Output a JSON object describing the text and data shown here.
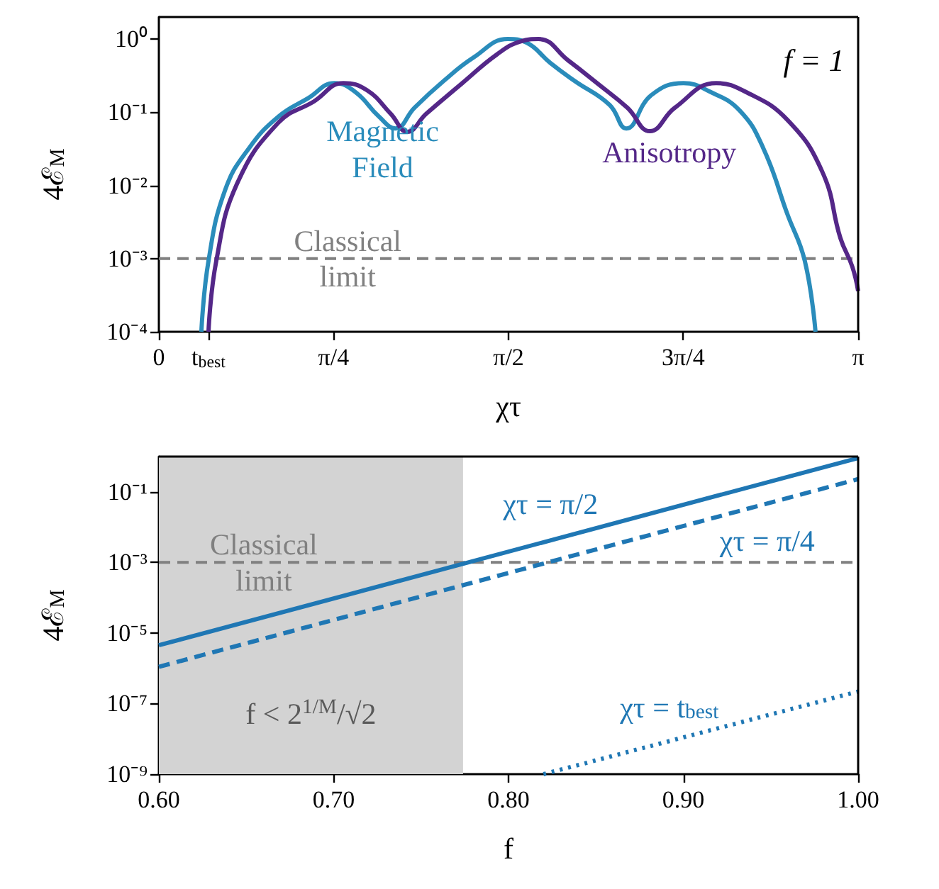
{
  "chart_data": [
    {
      "type": "line",
      "xlabel": "χτ",
      "ylabel": "4ℰ$_{M}$",
      "log": "y",
      "grid": false,
      "legend": false,
      "xlim": [
        0,
        3.1416
      ],
      "xticks": [
        0,
        {
          "value": 0.223,
          "label": "t$_{best}$"
        },
        {
          "value": 0.785,
          "label": "π/4"
        },
        {
          "value": 1.571,
          "label": "π/2"
        },
        {
          "value": 2.356,
          "label": "3π/4"
        },
        {
          "value": 3.1416,
          "label": "π"
        }
      ],
      "ylim": [
        0.0001,
        2
      ],
      "yticks": [
        {
          "value": 0.0001,
          "label": "10⁻⁴"
        },
        {
          "value": 0.001,
          "label": "10⁻³"
        },
        {
          "value": 0.01,
          "label": "10⁻²"
        },
        {
          "value": 0.1,
          "label": "10⁻¹"
        },
        {
          "value": 1,
          "label": "10⁰"
        }
      ],
      "annotations": [
        "f = 1"
      ],
      "ref_lines": [
        {
          "axis": "y",
          "value": 0.001,
          "label": "Classical limit",
          "color": "#808080",
          "line_style": "dashed"
        }
      ],
      "series": [
        {
          "name": "Magnetic Field",
          "color": "#2a8cbb",
          "x": [
            0.191,
            0.223,
            0.298,
            0.404,
            0.537,
            0.67,
            0.789,
            0.882,
            0.989,
            1.063,
            1.148,
            1.281,
            1.414,
            1.568,
            1.653,
            1.759,
            1.866,
            2.025,
            2.1,
            2.211,
            2.357,
            2.477,
            2.61,
            2.716,
            2.823,
            2.902,
            2.95
          ],
          "values": [
            0.0001,
            0.00093,
            0.0087,
            0.032,
            0.087,
            0.155,
            0.25,
            0.19,
            0.087,
            0.06,
            0.115,
            0.27,
            0.56,
            1.0,
            0.89,
            0.47,
            0.27,
            0.126,
            0.06,
            0.17,
            0.25,
            0.19,
            0.105,
            0.032,
            0.0041,
            0.00093,
            0.0001
          ]
        },
        {
          "name": "Anisotropy",
          "color": "#542788",
          "x": [
            0.223,
            0.258,
            0.351,
            0.537,
            0.696,
            0.829,
            0.935,
            1.042,
            1.116,
            1.201,
            1.36,
            1.52,
            1.626,
            1.706,
            1.839,
            1.972,
            2.105,
            2.206,
            2.318,
            2.504,
            2.636,
            2.823,
            2.982,
            3.062,
            3.115,
            3.1416
          ],
          "values": [
            0.0001,
            0.00093,
            0.0105,
            0.072,
            0.14,
            0.25,
            0.2,
            0.095,
            0.054,
            0.095,
            0.245,
            0.62,
            0.93,
            1.0,
            0.51,
            0.245,
            0.115,
            0.055,
            0.115,
            0.25,
            0.19,
            0.079,
            0.015,
            0.0019,
            0.00078,
            0.00036
          ]
        }
      ]
    },
    {
      "type": "line",
      "xlabel": "f",
      "ylabel": "4ℰ$_{M}$",
      "log": "y",
      "grid": false,
      "legend": false,
      "xlim": [
        0.6,
        1.0
      ],
      "xticks": [
        {
          "value": 0.6,
          "label": "0.60"
        },
        {
          "value": 0.7,
          "label": "0.70"
        },
        {
          "value": 0.8,
          "label": "0.80"
        },
        {
          "value": 0.9,
          "label": "0.90"
        },
        {
          "value": 1.0,
          "label": "1.00"
        }
      ],
      "ylim": [
        1e-09,
        1
      ],
      "yticks": [
        {
          "value": 1e-09,
          "label": "10⁻⁹"
        },
        {
          "value": 1e-07,
          "label": "10⁻⁷"
        },
        {
          "value": 1e-05,
          "label": "10⁻⁵"
        },
        {
          "value": 0.001,
          "label": "10⁻³"
        },
        {
          "value": 0.1,
          "label": "10⁻¹"
        }
      ],
      "ref_lines": [
        {
          "axis": "y",
          "value": 0.001,
          "label": "Classical limit",
          "color": "#808080",
          "line_style": "dashed"
        }
      ],
      "bands": [
        {
          "axis": "x",
          "from": 0.6,
          "to": 0.774,
          "label": "f < 2$^{1/M}$/√2",
          "color": "#d3d3d3"
        }
      ],
      "series": [
        {
          "name": "χτ = π/2",
          "color": "#1f77b4",
          "line_style": "solid",
          "x": [
            0.6,
            1.0
          ],
          "values": [
            4.5e-06,
            0.91
          ]
        },
        {
          "name": "χτ = π/4",
          "color": "#1f77b4",
          "line_style": "dashed",
          "x": [
            0.6,
            1.0
          ],
          "values": [
            1.1e-06,
            0.23
          ]
        },
        {
          "name": "χτ = t$_{best}$",
          "color": "#1f77b4",
          "line_style": "dotted",
          "x": [
            0.82,
            1.0
          ],
          "values": [
            1e-09,
            2.2e-07
          ]
        }
      ]
    }
  ]
}
